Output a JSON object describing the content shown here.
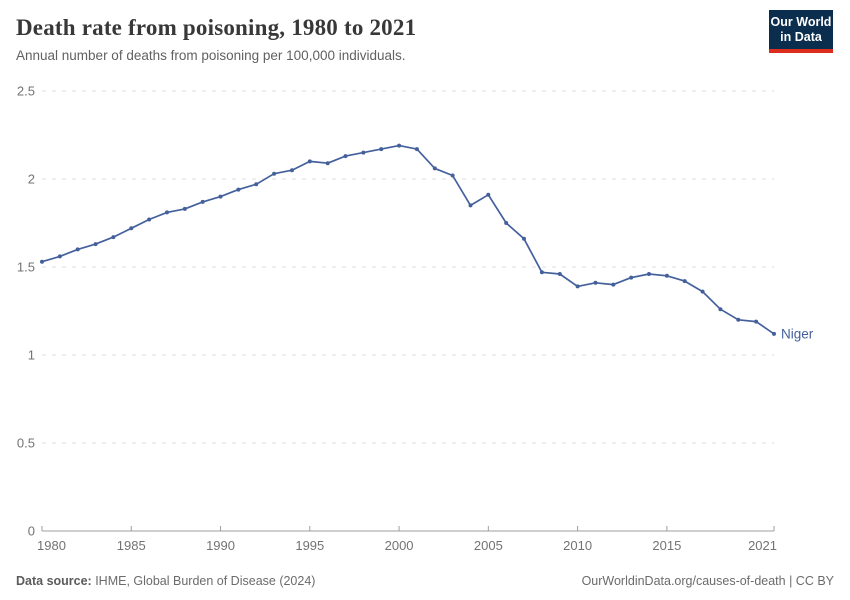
{
  "header": {
    "title": "Death rate from poisoning, 1980 to 2021",
    "subtitle": "Annual number of deaths from poisoning per 100,000 individuals.",
    "logo": {
      "line1": "Our World",
      "line2": "in Data",
      "bg": "#0c2e4e",
      "accent": "#dc2d1c"
    }
  },
  "chart_data": {
    "type": "line",
    "title": "Death rate from poisoning, 1980 to 2021",
    "xlabel": "",
    "ylabel": "Annual number of deaths from poisoning per 100,000 individuals",
    "xlim": [
      1980,
      2021
    ],
    "ylim": [
      0,
      2.5
    ],
    "x_ticks": [
      1980,
      1985,
      1990,
      1995,
      2000,
      2005,
      2010,
      2015,
      2021
    ],
    "y_ticks": [
      0,
      0.5,
      1,
      1.5,
      2,
      2.5
    ],
    "grid": "horizontal-dashed",
    "legend_position": "end-of-line-label",
    "series": [
      {
        "name": "Niger",
        "color": "#44609c",
        "x": [
          1980,
          1981,
          1982,
          1983,
          1984,
          1985,
          1986,
          1987,
          1988,
          1989,
          1990,
          1991,
          1992,
          1993,
          1994,
          1995,
          1996,
          1997,
          1998,
          1999,
          2000,
          2001,
          2002,
          2003,
          2004,
          2005,
          2006,
          2007,
          2008,
          2009,
          2010,
          2011,
          2012,
          2013,
          2014,
          2015,
          2016,
          2017,
          2018,
          2019,
          2020,
          2021
        ],
        "values": [
          1.53,
          1.56,
          1.6,
          1.63,
          1.67,
          1.72,
          1.77,
          1.81,
          1.83,
          1.87,
          1.9,
          1.94,
          1.97,
          2.03,
          2.05,
          2.1,
          2.09,
          2.13,
          2.15,
          2.17,
          2.19,
          2.17,
          2.06,
          2.02,
          1.85,
          1.91,
          1.75,
          1.66,
          1.47,
          1.46,
          1.39,
          1.41,
          1.4,
          1.44,
          1.46,
          1.45,
          1.42,
          1.36,
          1.26,
          1.2,
          1.19,
          1.12
        ]
      }
    ]
  },
  "footer": {
    "source_label": "Data source:",
    "source_text": " IHME, Global Burden of Disease (2024)",
    "link_text": "OurWorldinData.org/causes-of-death | CC BY"
  }
}
